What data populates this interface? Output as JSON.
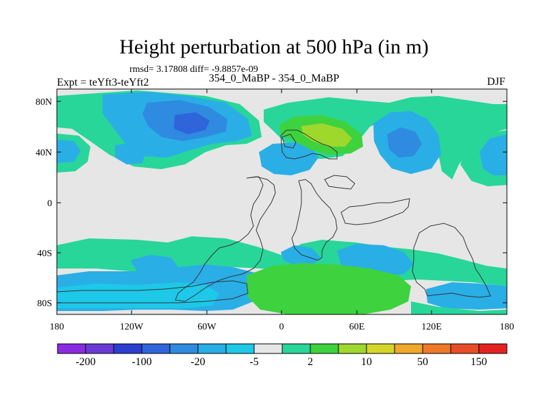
{
  "header": {
    "title": "Height perturbation at 500 hPa (in m)",
    "stats": "rmsd= 3.17808 diff= -9.8857e-09",
    "experiment": "Expt = teYft3-teYft2",
    "subtitle": "354_0_MaBP - 354_0_MaBP",
    "season": "DJF"
  },
  "axes": {
    "y_ticks": [
      "80N",
      "40N",
      "0",
      "40S",
      "80S"
    ],
    "x_ticks": [
      "180",
      "120W",
      "60W",
      "0",
      "60E",
      "120E",
      "180"
    ]
  },
  "colorbar": {
    "colors": [
      "#8a2be2",
      "#6a3ad6",
      "#2a3fd2",
      "#2f64da",
      "#2e8be0",
      "#2aaee6",
      "#1ec8e8",
      "#e6e6e6",
      "#28d69a",
      "#3ed23e",
      "#9ed82c",
      "#d6d62a",
      "#f0a82a",
      "#ee7a28",
      "#e84e26",
      "#e42222"
    ],
    "labels": [
      "-200",
      "-100",
      "-20",
      "-5",
      "2",
      "10",
      "50",
      "150"
    ]
  },
  "fill_colors": {
    "background": "#e6e6e6",
    "light_blue": "#1ec8e8",
    "mid_blue": "#2aaee6",
    "blue": "#2e8be0",
    "dark_blue": "#2f64da",
    "teal_green": "#28d69a",
    "green": "#3ed23e",
    "yellow_green": "#9ed82c"
  }
}
